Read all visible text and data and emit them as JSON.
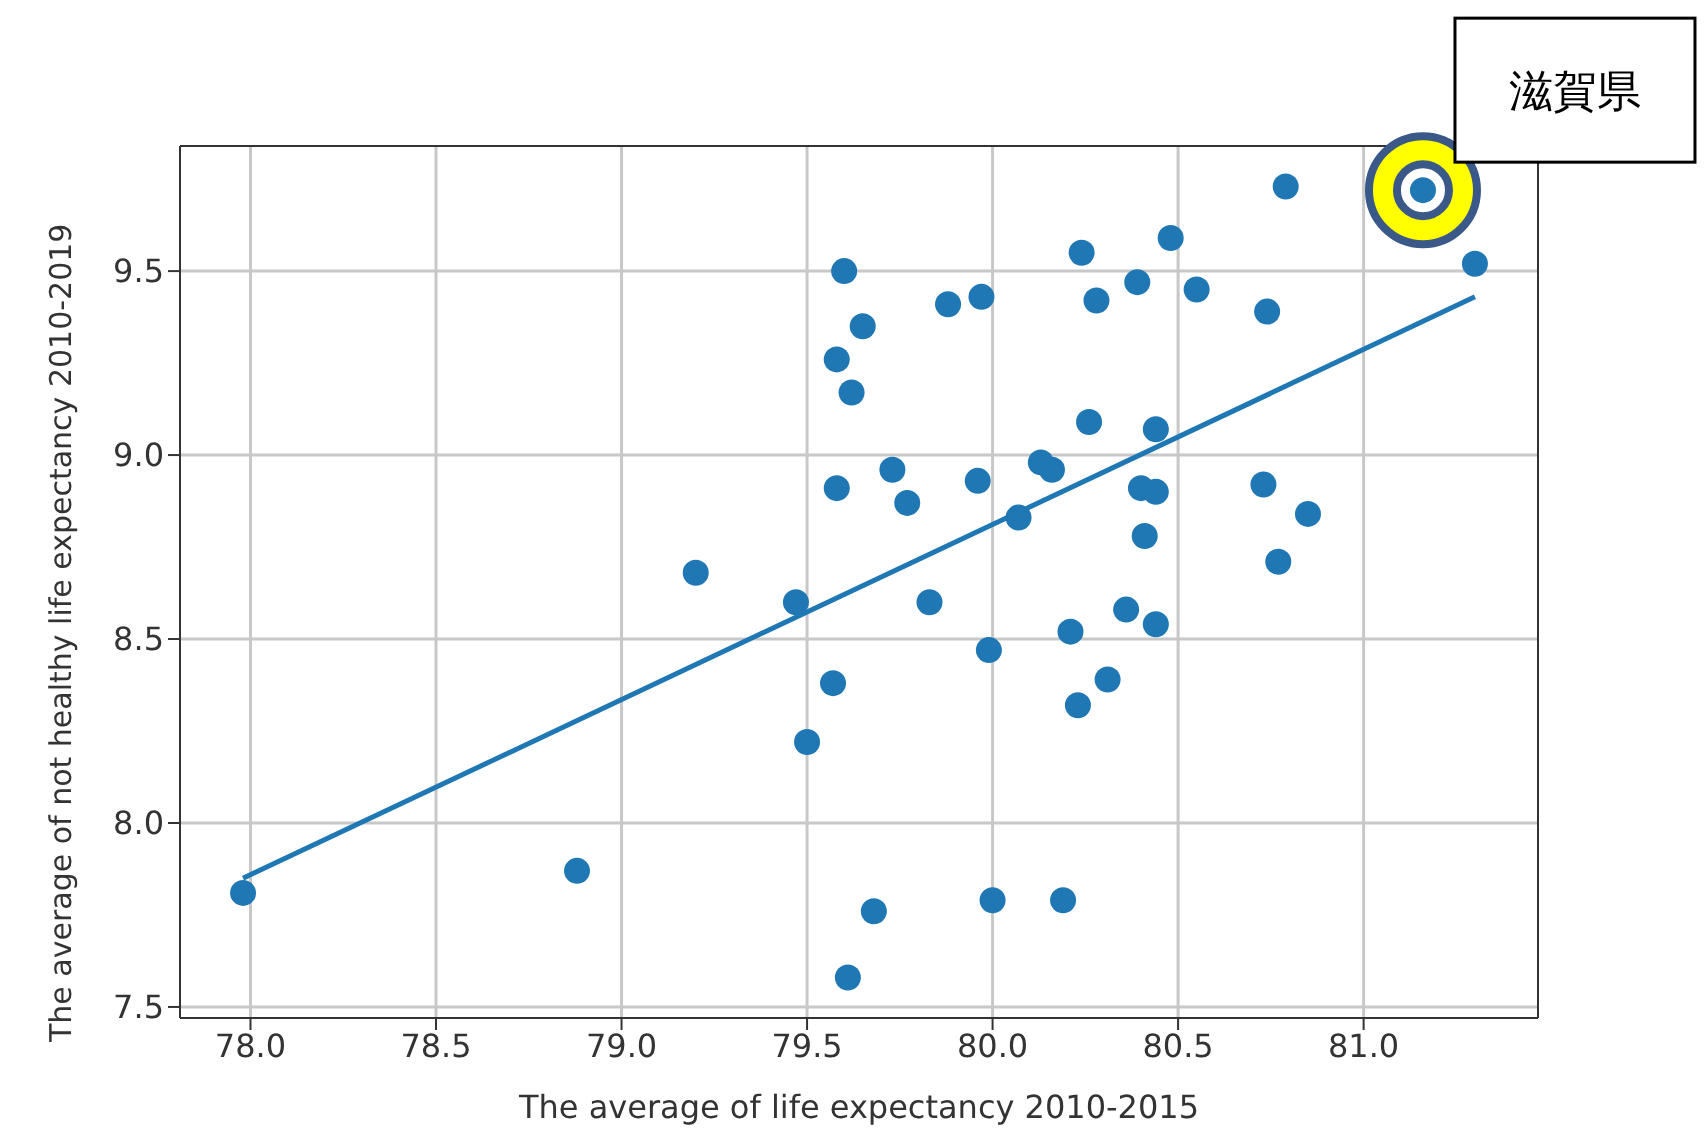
{
  "chart_data": {
    "type": "scatter",
    "xlabel": "The average of life expectancy 2010-2015",
    "ylabel": "The average of not healthy life expectancy 2010-2019",
    "xlim": [
      77.81,
      81.47
    ],
    "ylim": [
      7.47,
      9.84
    ],
    "xticks": [
      {
        "value": 78,
        "label": "78.0"
      },
      78.5,
      {
        "value": 79,
        "label": "79.0"
      },
      79.5,
      {
        "value": 80,
        "label": "80.0"
      },
      80.5,
      {
        "value": 81,
        "label": "81.0"
      }
    ],
    "yticks": [
      7.5,
      {
        "value": 8,
        "label": "8.0"
      },
      8.5,
      {
        "value": 9,
        "label": "9.0"
      },
      9.5
    ],
    "grid": true,
    "marker": "circle",
    "legend": false,
    "series": [
      {
        "color": "#1f77b4",
        "x": [
          77.98,
          78.88,
          79.2,
          79.47,
          79.5,
          79.57,
          79.6,
          79.65,
          79.58,
          79.62,
          79.58,
          79.61,
          79.68,
          79.73,
          79.77,
          79.83,
          79.88,
          79.97,
          79.96,
          79.99,
          80.0,
          80.07,
          80.13,
          80.16,
          80.24,
          80.28,
          80.26,
          80.21,
          80.23,
          80.31,
          80.19,
          80.39,
          80.48,
          80.55,
          80.44,
          80.4,
          80.44,
          80.41,
          80.36,
          80.44,
          80.74,
          80.73,
          80.79,
          80.77,
          80.85,
          81.16,
          81.3
        ],
        "values": [
          7.81,
          7.87,
          8.68,
          8.6,
          8.22,
          8.38,
          9.5,
          9.35,
          9.26,
          9.17,
          8.91,
          7.58,
          7.76,
          8.96,
          8.87,
          8.6,
          9.41,
          9.43,
          8.93,
          8.47,
          7.79,
          8.83,
          8.98,
          8.96,
          9.55,
          9.42,
          9.09,
          8.52,
          8.32,
          8.39,
          7.79,
          9.47,
          9.59,
          9.45,
          9.07,
          8.91,
          8.9,
          8.78,
          8.58,
          8.54,
          9.39,
          8.92,
          9.73,
          8.71,
          8.84,
          9.72,
          9.52
        ]
      },
      {
        "type": "line",
        "marker": "none",
        "color": "#1f77b4",
        "x": [
          77.98,
          81.3
        ],
        "values": [
          7.85,
          9.43
        ]
      }
    ],
    "annotations": [
      {
        "text": "滋賀県",
        "x": 81.16,
        "y": 9.72
      }
    ]
  }
}
